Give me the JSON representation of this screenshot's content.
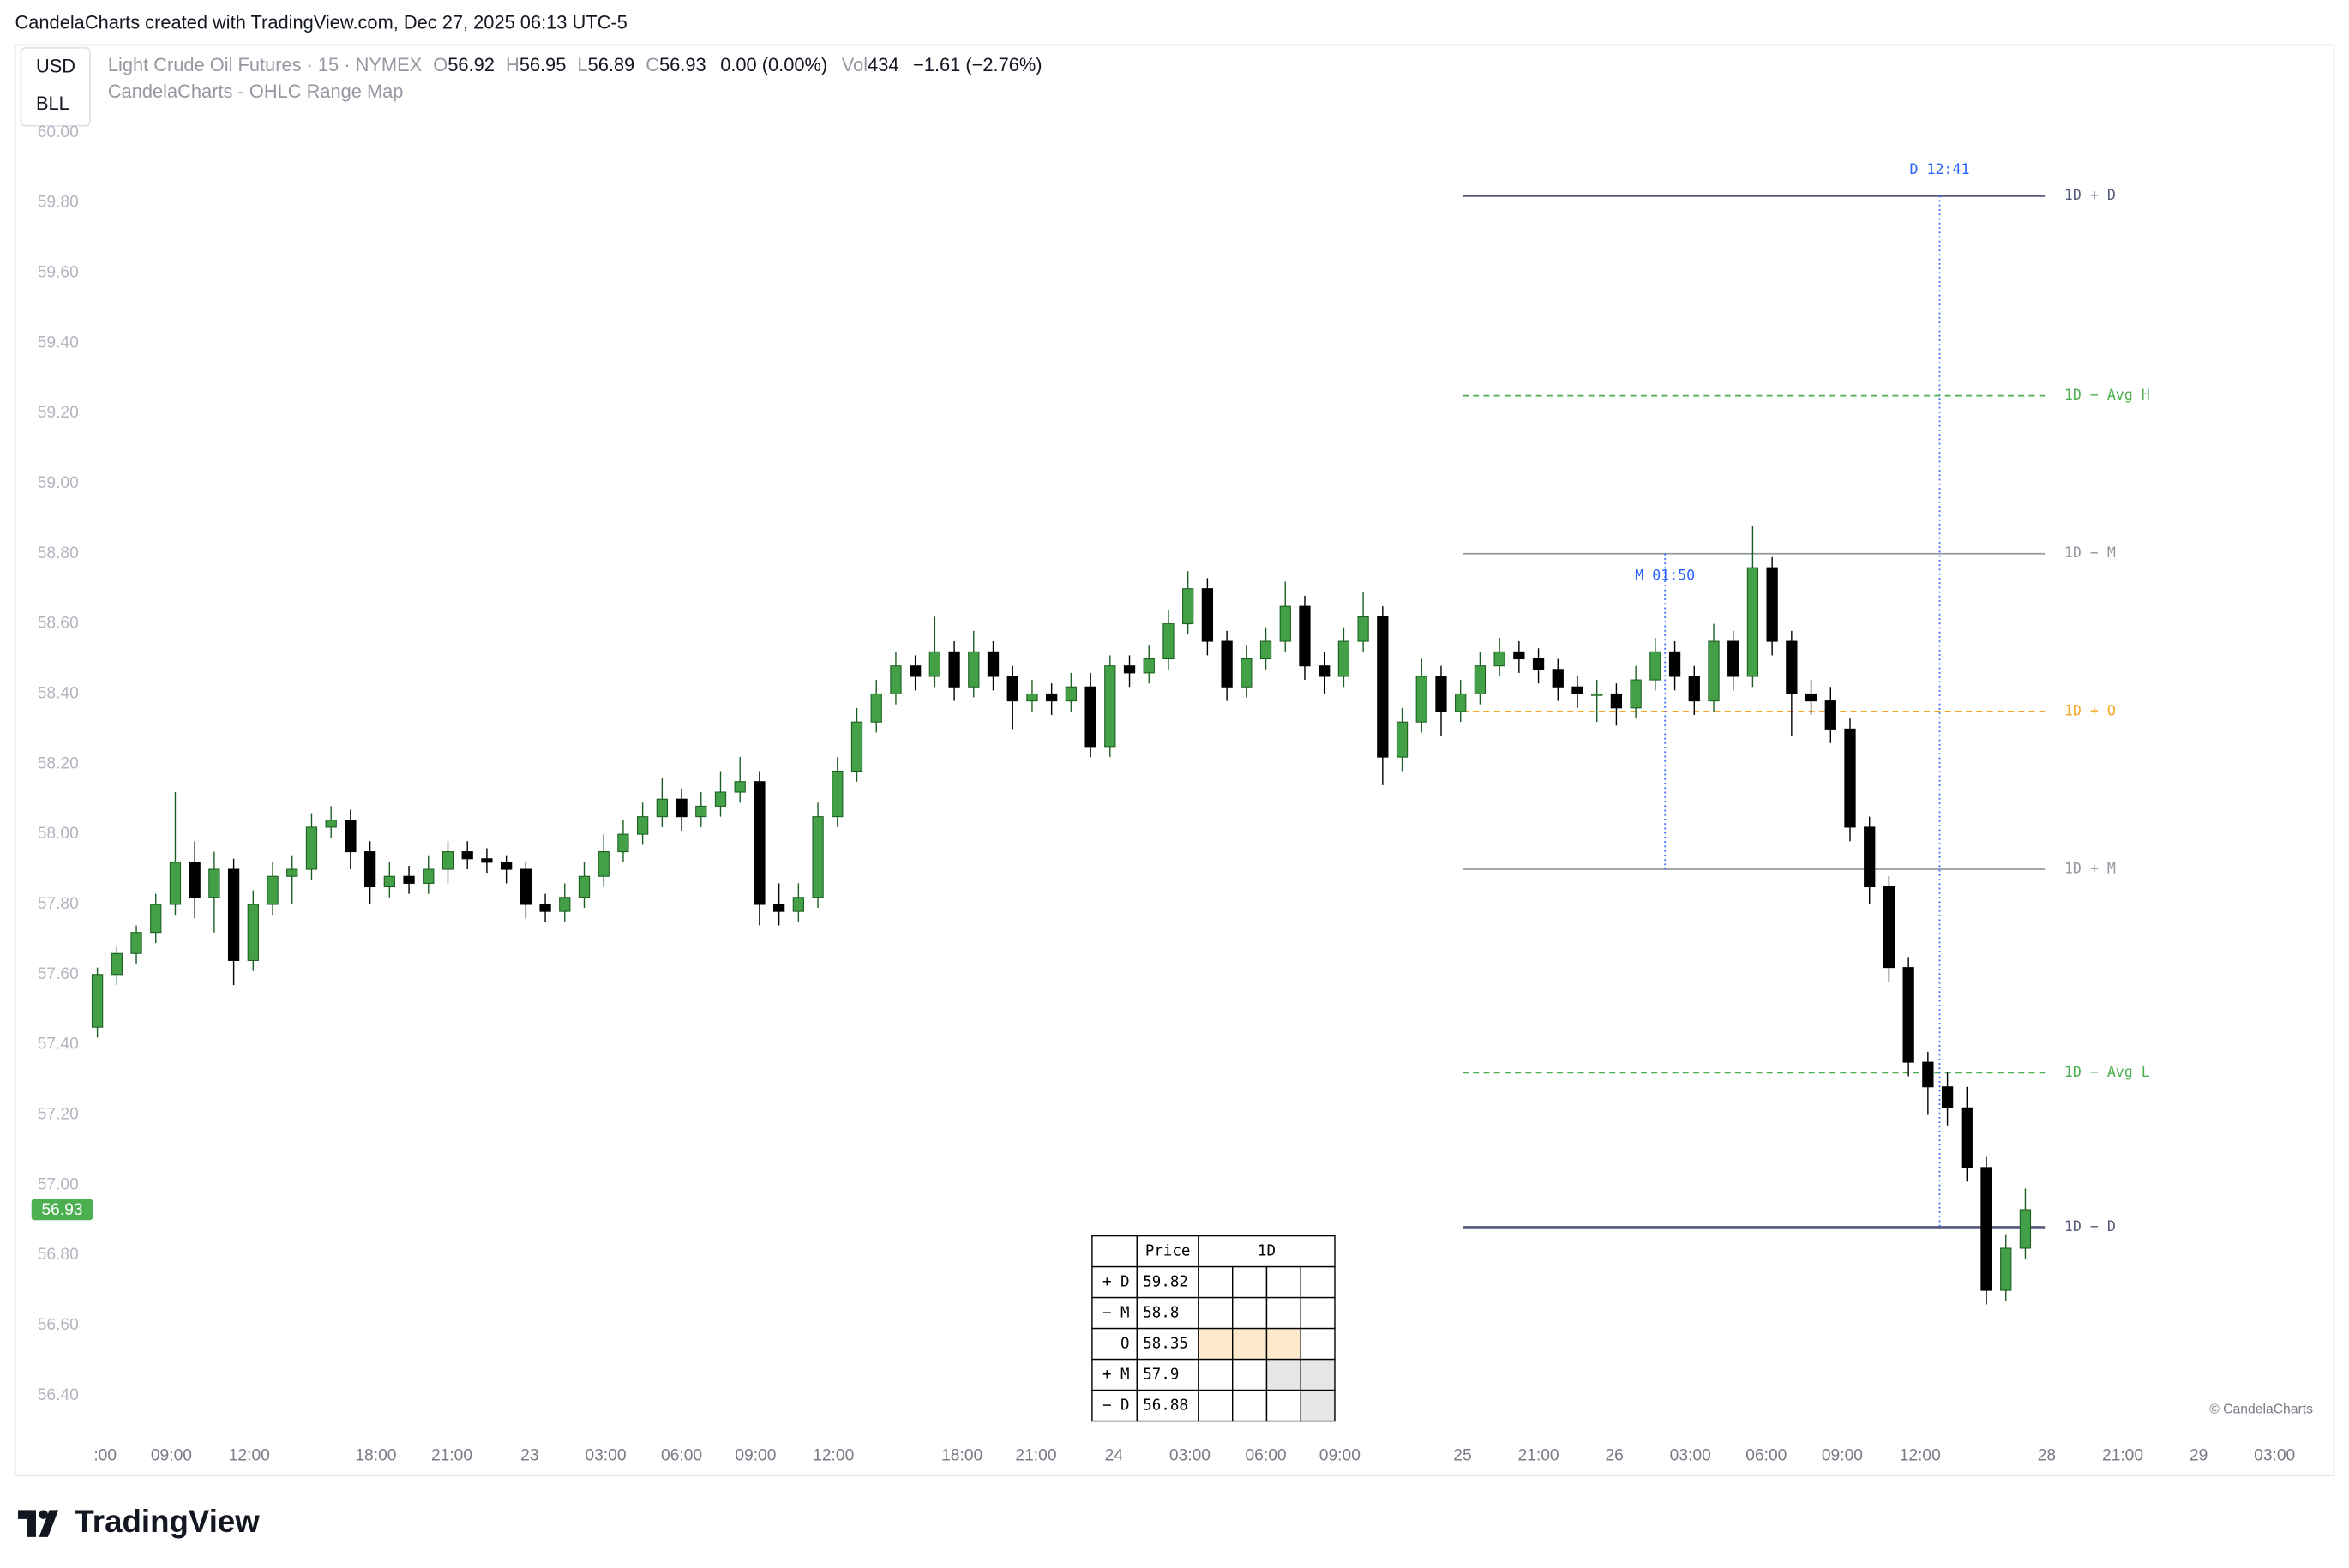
{
  "header": {
    "credit": "CandelaCharts created with TradingView.com, Dec 27, 2025 06:13 UTC-5",
    "currency": "USD",
    "unit": "BLL",
    "symbol": "Light Crude Oil Futures · 15 · NYMEX",
    "o_label": "O",
    "o": 56.92,
    "h_label": "H",
    "h": 56.95,
    "l_label": "L",
    "l": 56.89,
    "c_label": "C",
    "c": 56.93,
    "change": "0.00 (0.00%)",
    "vol_label": "Vol",
    "vol": 434,
    "day_change": "−1.61 (−2.76%)",
    "indicator": "CandelaCharts - OHLC Range Map"
  },
  "chart_data": {
    "type": "candlestick",
    "up_color": "#43a047",
    "up_border": "#1b5e20",
    "down_color": "#000000",
    "grid": false,
    "ylim": [
      56.3,
      60.25
    ],
    "yticks": [
      {
        "value": 56.4,
        "label": "56.40"
      },
      {
        "value": 56.6,
        "label": "56.60"
      },
      {
        "value": 56.8,
        "label": "56.80"
      },
      {
        "value": 57,
        "label": "57.00"
      },
      {
        "value": 57.2,
        "label": "57.20"
      },
      {
        "value": 57.4,
        "label": "57.40"
      },
      {
        "value": 57.6,
        "label": "57.60"
      },
      {
        "value": 57.8,
        "label": "57.80"
      },
      {
        "value": 58,
        "label": "58.00"
      },
      {
        "value": 58.2,
        "label": "58.20"
      },
      {
        "value": 58.4,
        "label": "58.40"
      },
      {
        "value": 58.6,
        "label": "58.60"
      },
      {
        "value": 58.8,
        "label": "58.80"
      },
      {
        "value": 59,
        "label": "59.00"
      },
      {
        "value": 59.2,
        "label": "59.20"
      },
      {
        "value": 59.4,
        "label": "59.40"
      },
      {
        "value": 59.6,
        "label": "59.60"
      },
      {
        "value": 59.8,
        "label": "59.80"
      },
      {
        "value": 60,
        "label": "60.00"
      }
    ],
    "xlim": [
      -4.23,
      114.85
    ],
    "xticks": [
      {
        "value": 0.4,
        "label": ":00"
      },
      {
        "value": 3.8,
        "label": "09:00"
      },
      {
        "value": 7.8,
        "label": "12:00"
      },
      {
        "value": 14.3,
        "label": "18:00"
      },
      {
        "value": 18.2,
        "label": "21:00"
      },
      {
        "value": 22.2,
        "label": "23"
      },
      {
        "value": 26.1,
        "label": "03:00"
      },
      {
        "value": 30,
        "label": "06:00"
      },
      {
        "value": 33.8,
        "label": "09:00"
      },
      {
        "value": 37.8,
        "label": "12:00"
      },
      {
        "value": 44.4,
        "label": "18:00"
      },
      {
        "value": 48.2,
        "label": "21:00"
      },
      {
        "value": 52.2,
        "label": "24"
      },
      {
        "value": 56.1,
        "label": "03:00"
      },
      {
        "value": 60,
        "label": "06:00"
      },
      {
        "value": 63.8,
        "label": "09:00"
      },
      {
        "value": 70.1,
        "label": "25"
      },
      {
        "value": 74,
        "label": "21:00"
      },
      {
        "value": 77.9,
        "label": "26"
      },
      {
        "value": 81.8,
        "label": "03:00"
      },
      {
        "value": 85.7,
        "label": "06:00"
      },
      {
        "value": 89.6,
        "label": "09:00"
      },
      {
        "value": 93.6,
        "label": "12:00"
      },
      {
        "value": 100.1,
        "label": "28"
      },
      {
        "value": 104,
        "label": "21:00"
      },
      {
        "value": 107.9,
        "label": "29"
      },
      {
        "value": 111.8,
        "label": "03:00"
      }
    ],
    "ohlc": [
      [
        57.45,
        57.62,
        57.42,
        57.6
      ],
      [
        57.6,
        57.68,
        57.57,
        57.66
      ],
      [
        57.66,
        57.74,
        57.63,
        57.72
      ],
      [
        57.72,
        57.83,
        57.69,
        57.8
      ],
      [
        57.8,
        58.12,
        57.77,
        57.92
      ],
      [
        57.92,
        57.98,
        57.76,
        57.82
      ],
      [
        57.82,
        57.95,
        57.72,
        57.9
      ],
      [
        57.9,
        57.93,
        57.57,
        57.64
      ],
      [
        57.64,
        57.84,
        57.61,
        57.8
      ],
      [
        57.8,
        57.92,
        57.77,
        57.88
      ],
      [
        57.88,
        57.94,
        57.8,
        57.9
      ],
      [
        57.9,
        58.06,
        57.87,
        58.02
      ],
      [
        58.02,
        58.08,
        57.99,
        58.04
      ],
      [
        58.04,
        58.07,
        57.9,
        57.95
      ],
      [
        57.95,
        57.98,
        57.8,
        57.85
      ],
      [
        57.85,
        57.92,
        57.82,
        57.88
      ],
      [
        57.88,
        57.91,
        57.83,
        57.86
      ],
      [
        57.86,
        57.94,
        57.83,
        57.9
      ],
      [
        57.9,
        57.98,
        57.86,
        57.95
      ],
      [
        57.95,
        57.98,
        57.9,
        57.93
      ],
      [
        57.93,
        57.96,
        57.89,
        57.92
      ],
      [
        57.92,
        57.94,
        57.86,
        57.9
      ],
      [
        57.9,
        57.92,
        57.76,
        57.8
      ],
      [
        57.8,
        57.83,
        57.75,
        57.78
      ],
      [
        57.78,
        57.86,
        57.75,
        57.82
      ],
      [
        57.82,
        57.92,
        57.79,
        57.88
      ],
      [
        57.88,
        58,
        57.85,
        57.95
      ],
      [
        57.95,
        58.04,
        57.92,
        58
      ],
      [
        58,
        58.09,
        57.97,
        58.05
      ],
      [
        58.05,
        58.16,
        58.02,
        58.1
      ],
      [
        58.1,
        58.13,
        58.01,
        58.05
      ],
      [
        58.05,
        58.12,
        58.02,
        58.08
      ],
      [
        58.08,
        58.18,
        58.05,
        58.12
      ],
      [
        58.12,
        58.22,
        58.09,
        58.15
      ],
      [
        58.15,
        58.18,
        57.74,
        57.8
      ],
      [
        57.8,
        57.86,
        57.74,
        57.78
      ],
      [
        57.78,
        57.86,
        57.75,
        57.82
      ],
      [
        57.82,
        58.09,
        57.79,
        58.05
      ],
      [
        58.05,
        58.22,
        58.02,
        58.18
      ],
      [
        58.18,
        58.36,
        58.15,
        58.32
      ],
      [
        58.32,
        58.44,
        58.29,
        58.4
      ],
      [
        58.4,
        58.52,
        58.37,
        58.48
      ],
      [
        58.48,
        58.51,
        58.41,
        58.45
      ],
      [
        58.45,
        58.62,
        58.42,
        58.52
      ],
      [
        58.52,
        58.55,
        58.38,
        58.42
      ],
      [
        58.42,
        58.58,
        58.39,
        58.52
      ],
      [
        58.52,
        58.55,
        58.41,
        58.45
      ],
      [
        58.45,
        58.48,
        58.3,
        58.38
      ],
      [
        58.38,
        58.44,
        58.35,
        58.4
      ],
      [
        58.4,
        58.43,
        58.34,
        58.38
      ],
      [
        58.38,
        58.46,
        58.35,
        58.42
      ],
      [
        58.42,
        58.46,
        58.22,
        58.25
      ],
      [
        58.25,
        58.51,
        58.22,
        58.48
      ],
      [
        58.48,
        58.51,
        58.42,
        58.46
      ],
      [
        58.46,
        58.54,
        58.43,
        58.5
      ],
      [
        58.5,
        58.64,
        58.47,
        58.6
      ],
      [
        58.6,
        58.75,
        58.57,
        58.7
      ],
      [
        58.7,
        58.73,
        58.51,
        58.55
      ],
      [
        58.55,
        58.58,
        58.38,
        58.42
      ],
      [
        58.42,
        58.54,
        58.39,
        58.5
      ],
      [
        58.5,
        58.59,
        58.47,
        58.55
      ],
      [
        58.55,
        58.72,
        58.52,
        58.65
      ],
      [
        58.65,
        58.68,
        58.44,
        58.48
      ],
      [
        58.48,
        58.52,
        58.4,
        58.45
      ],
      [
        58.45,
        58.59,
        58.42,
        58.55
      ],
      [
        58.55,
        58.69,
        58.52,
        58.62
      ],
      [
        58.62,
        58.65,
        58.14,
        58.22
      ],
      [
        58.22,
        58.36,
        58.18,
        58.32
      ],
      [
        58.32,
        58.5,
        58.29,
        58.45
      ],
      [
        58.45,
        58.48,
        58.28,
        58.35
      ],
      [
        58.35,
        58.44,
        58.32,
        58.4
      ],
      [
        58.4,
        58.52,
        58.37,
        58.48
      ],
      [
        58.48,
        58.56,
        58.45,
        58.52
      ],
      [
        58.52,
        58.55,
        58.46,
        58.5
      ],
      [
        58.5,
        58.53,
        58.43,
        58.47
      ],
      [
        58.47,
        58.5,
        58.38,
        58.42
      ],
      [
        58.42,
        58.45,
        58.36,
        58.4
      ],
      [
        58.4,
        58.44,
        58.32,
        58.4
      ],
      [
        58.4,
        58.43,
        58.31,
        58.36
      ],
      [
        58.36,
        58.48,
        58.33,
        58.44
      ],
      [
        58.44,
        58.56,
        58.41,
        58.52
      ],
      [
        58.52,
        58.55,
        58.41,
        58.45
      ],
      [
        58.45,
        58.48,
        58.34,
        58.38
      ],
      [
        58.38,
        58.6,
        58.35,
        58.55
      ],
      [
        58.55,
        58.58,
        58.41,
        58.45
      ],
      [
        58.45,
        58.88,
        58.42,
        58.76
      ],
      [
        58.76,
        58.79,
        58.51,
        58.55
      ],
      [
        58.55,
        58.58,
        58.28,
        58.4
      ],
      [
        58.4,
        58.44,
        58.34,
        58.38
      ],
      [
        58.38,
        58.42,
        58.26,
        58.3
      ],
      [
        58.3,
        58.33,
        57.98,
        58.02
      ],
      [
        58.02,
        58.05,
        57.8,
        57.85
      ],
      [
        57.85,
        57.88,
        57.58,
        57.62
      ],
      [
        57.62,
        57.65,
        57.31,
        57.35
      ],
      [
        57.35,
        57.38,
        57.2,
        57.28
      ],
      [
        57.28,
        57.32,
        57.17,
        57.22
      ],
      [
        57.22,
        57.28,
        57.01,
        57.05
      ],
      [
        57.05,
        57.08,
        56.66,
        56.7
      ],
      [
        56.7,
        56.86,
        56.67,
        56.82
      ],
      [
        56.82,
        56.99,
        56.79,
        56.93
      ]
    ],
    "last_color": "#4caf50",
    "level_span": [
      70.1,
      100
    ],
    "levels": [
      {
        "label": "1D + D",
        "value": 59.82,
        "color": "#555a7a",
        "style": "solid"
      },
      {
        "label": "1D − Avg H",
        "value": 59.25,
        "color": "#4caf50",
        "style": "dashed"
      },
      {
        "label": "1D − M",
        "value": 58.8,
        "color": "#9598a1",
        "style": "solid"
      },
      {
        "label": "1D + O",
        "value": 58.35,
        "color": "#f5a623",
        "style": "dashed"
      },
      {
        "label": "1D + M",
        "value": 57.9,
        "color": "#9598a1",
        "style": "solid"
      },
      {
        "label": "1D − Avg L",
        "value": 57.32,
        "color": "#4caf50",
        "style": "dashed"
      },
      {
        "label": "1D − D",
        "value": 56.88,
        "color": "#555a7a",
        "style": "solid"
      }
    ],
    "markers": [
      {
        "label": "D 12:41",
        "x": 94.6,
        "from": 59.82,
        "to": 56.88,
        "position": "above"
      },
      {
        "label": "M 01:50",
        "x": 80.5,
        "from": 58.8,
        "to": 57.9,
        "position": "below"
      }
    ],
    "marker_color": "#2962ff"
  },
  "table": {
    "header": [
      "Price",
      "1D"
    ],
    "rows": [
      {
        "label": "+ D",
        "price": 59.82,
        "cells": [
          "#ffffff",
          "#ffffff",
          "#ffffff",
          "#ffffff"
        ]
      },
      {
        "label": "− M",
        "price": 58.8,
        "cells": [
          "#ffffff",
          "#ffffff",
          "#ffffff",
          "#ffffff"
        ]
      },
      {
        "label": "O",
        "price": 58.35,
        "cells": [
          "#fde9cc",
          "#fde9cc",
          "#fde9cc",
          "#ffffff"
        ]
      },
      {
        "label": "+ M",
        "price": 57.9,
        "cells": [
          "#ffffff",
          "#ffffff",
          "#e6e6e6",
          "#e6e6e6"
        ]
      },
      {
        "label": "− D",
        "price": 56.88,
        "cells": [
          "#ffffff",
          "#ffffff",
          "#ffffff",
          "#e6e6e6"
        ]
      }
    ]
  },
  "watermark": "© CandelaCharts",
  "footer": {
    "brand": "TradingView"
  }
}
